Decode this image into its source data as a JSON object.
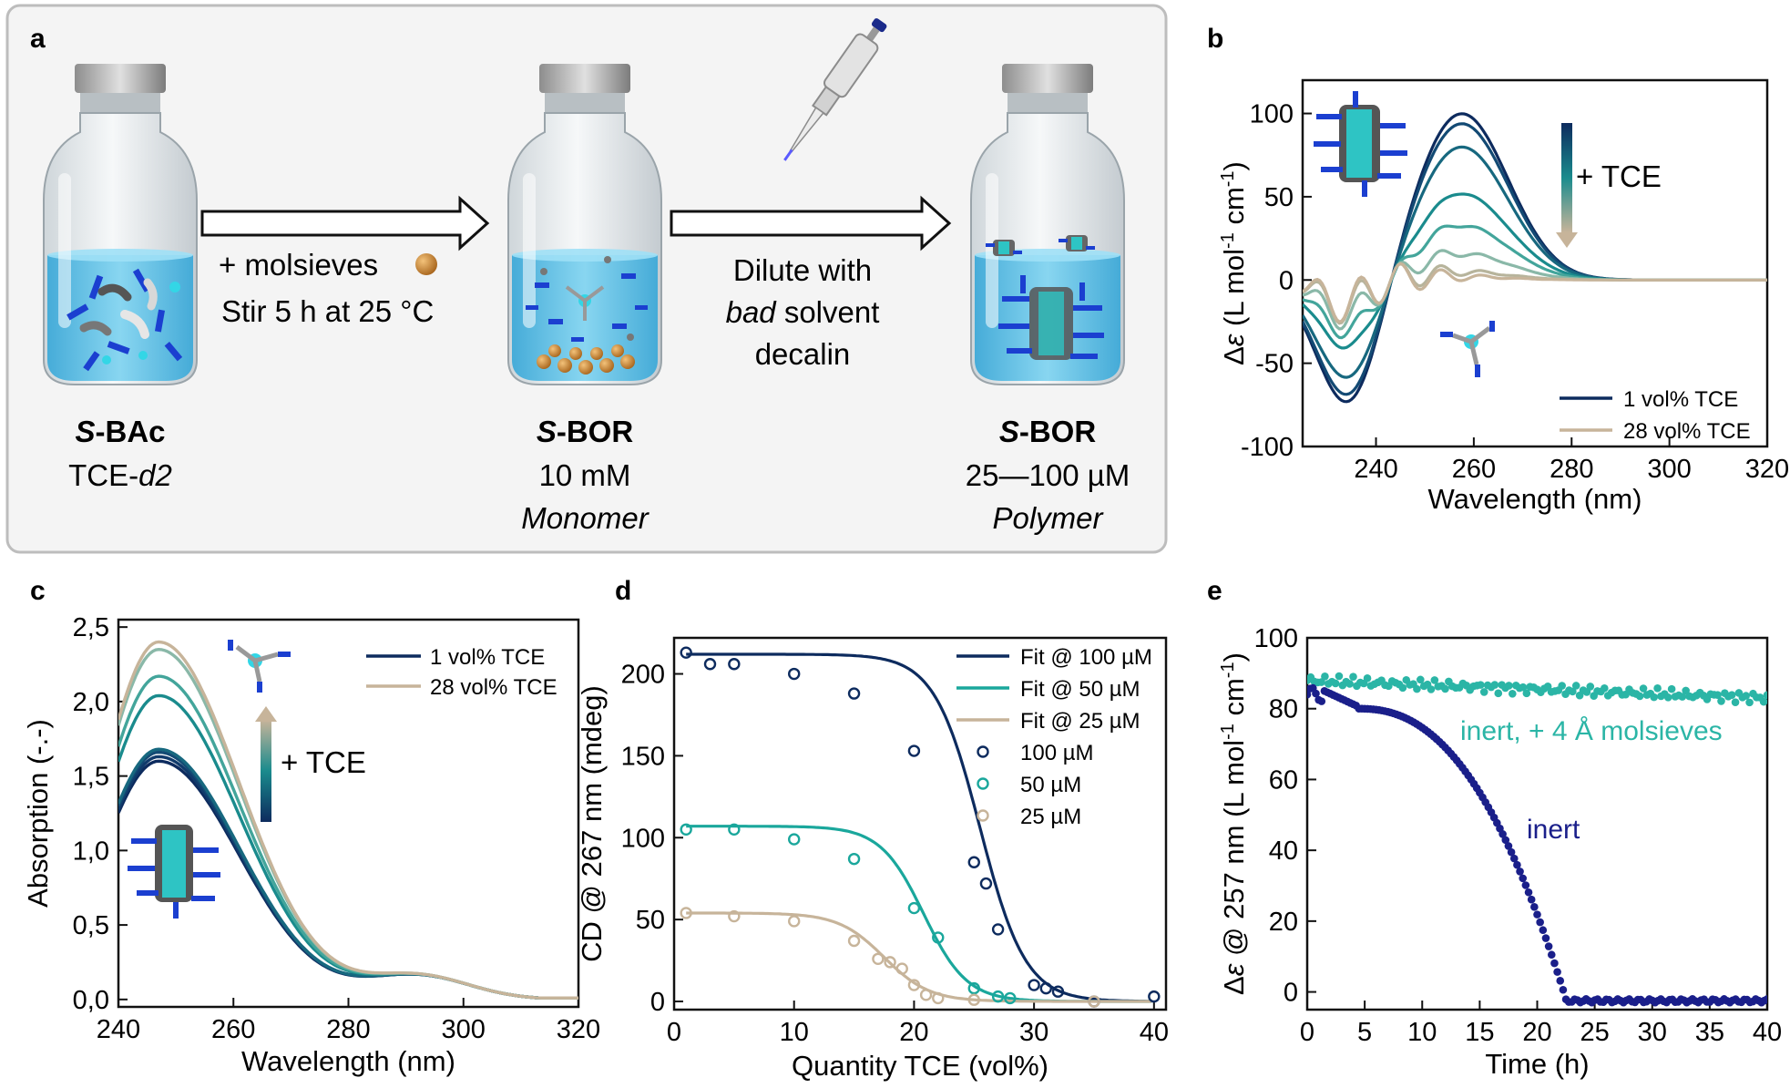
{
  "panels": {
    "a": {
      "letter": "a",
      "vial1": {
        "name": "S-BAc",
        "name_italic": "S",
        "name_rest": "-BAc",
        "line2": "TCE-d2",
        "line2_plain": "TCE-",
        "line2_italic": "d2"
      },
      "arrow1": {
        "line1": "+ molsieves",
        "line2": "Stir 5 h at 25 °C"
      },
      "vial2": {
        "name": "S-BOR",
        "name_italic": "S",
        "name_rest": "-BOR",
        "line2": "10 mM",
        "line3": "Monomer"
      },
      "arrow2": {
        "line1": "Dilute with",
        "line2_italic": "bad",
        "line2_rest": " solvent",
        "line3": "decalin"
      },
      "vial3": {
        "name": "S-BOR",
        "name_italic": "S",
        "name_rest": "-BOR",
        "line2": "25—100 µM",
        "line3": "Polymer"
      }
    },
    "b": {
      "letter": "b",
      "annotation": "+ TCE"
    },
    "c": {
      "letter": "c",
      "annotation": "+ TCE"
    },
    "d": {
      "letter": "d"
    },
    "e": {
      "letter": "e"
    }
  },
  "colors": {
    "navy": "#0d2b5e",
    "teal": "#1aa79c",
    "beige": "#c7b49a",
    "inert_dark": "#1a1f8a",
    "inert_teal": "#2bb5a6",
    "vial_liquid": "#5fc3e6",
    "panel_border": "#bdbdbd",
    "panel_bg": "#f4f4f4"
  },
  "chart_data": [
    {
      "panel": "b",
      "type": "line",
      "xlabel": "Wavelength (nm)",
      "ylabel": "Δε (L mol-1 cm-1)",
      "xlim": [
        225,
        320
      ],
      "ylim": [
        -100,
        120
      ],
      "xticks": [
        240,
        260,
        280,
        300,
        320
      ],
      "yticks": [
        -100,
        -50,
        0,
        50,
        100
      ],
      "legend": [
        {
          "label": "1 vol% TCE",
          "color": "#0d2b5e"
        },
        {
          "label": "28 vol% TCE",
          "color": "#c7b49a"
        }
      ],
      "legend_position": "bottom-right",
      "series_amplitudes": [
        100,
        94,
        80,
        52,
        33,
        16,
        5,
        2
      ],
      "series_colors": [
        "#0d2b5e",
        "#134a74",
        "#17687f",
        "#1a8b8d",
        "#43a59b",
        "#8ab8a8",
        "#b7b49c",
        "#c7b49a"
      ]
    },
    {
      "panel": "c",
      "type": "line",
      "xlabel": "Wavelength (nm)",
      "ylabel": "Absorption (-.-)",
      "xlim": [
        240,
        320
      ],
      "ylim": [
        -0.05,
        2.55
      ],
      "xticks": [
        240,
        260,
        280,
        300,
        320
      ],
      "yticks": [
        0.0,
        0.5,
        1.0,
        1.5,
        2.0,
        2.5
      ],
      "ytick_labels": [
        "0,0",
        "0,5",
        "1,0",
        "1,5",
        "2,0",
        "2,5"
      ],
      "legend": [
        {
          "label": "1 vol% TCE",
          "color": "#0d2b5e"
        },
        {
          "label": "28 vol% TCE",
          "color": "#c7b49a"
        }
      ],
      "legend_position": "top-right",
      "peak_values": [
        1.6,
        1.63,
        1.66,
        1.68,
        2.04,
        2.17,
        2.35,
        2.4
      ],
      "series_colors": [
        "#0d2b5e",
        "#103a6b",
        "#134a74",
        "#17687f",
        "#1a8b8d",
        "#43a59b",
        "#8ab8a8",
        "#c7b49a"
      ]
    },
    {
      "panel": "d",
      "type": "scatter",
      "xlabel": "Quantity TCE (vol%)",
      "ylabel": "CD @ 267 nm (mdeg)",
      "xlim": [
        0,
        41
      ],
      "ylim": [
        -5,
        222
      ],
      "xticks": [
        0,
        10,
        20,
        30,
        40
      ],
      "yticks": [
        0,
        50,
        100,
        150,
        200
      ],
      "legend": [
        {
          "label": "Fit @ 100 µM",
          "kind": "line",
          "color": "#0d2b5e"
        },
        {
          "label": "Fit @ 50 µM",
          "kind": "line",
          "color": "#1aa79c"
        },
        {
          "label": "Fit @ 25 µM",
          "kind": "line",
          "color": "#c7b49a"
        },
        {
          "label": "100 µM",
          "kind": "marker",
          "color": "#0d2b5e"
        },
        {
          "label": "50 µM",
          "kind": "marker",
          "color": "#1aa79c"
        },
        {
          "label": "25 µM",
          "kind": "marker",
          "color": "#c7b49a"
        }
      ],
      "legend_position": "top-right",
      "fits": [
        {
          "name": "Fit @ 100 µM",
          "color": "#0d2b5e",
          "amp": 212,
          "mid": 25.5,
          "width": 1.9
        },
        {
          "name": "Fit @ 50 µM",
          "color": "#1aa79c",
          "amp": 107,
          "mid": 20.8,
          "width": 1.8
        },
        {
          "name": "Fit @ 25 µM",
          "color": "#c7b49a",
          "amp": 54,
          "mid": 17.5,
          "width": 1.9
        }
      ],
      "series": [
        {
          "name": "100 µM",
          "color": "#0d2b5e",
          "x": [
            1,
            3,
            5,
            10,
            15,
            20,
            25,
            26,
            27,
            30,
            31,
            32,
            35,
            40
          ],
          "y": [
            213,
            206,
            206,
            200,
            188,
            153,
            85,
            72,
            44,
            10,
            8,
            6,
            0,
            3
          ]
        },
        {
          "name": "50 µM",
          "color": "#1aa79c",
          "x": [
            1,
            5,
            10,
            15,
            20,
            22,
            25,
            27,
            28
          ],
          "y": [
            105,
            105,
            99,
            87,
            57,
            39,
            8,
            3,
            2
          ]
        },
        {
          "name": "25 µM",
          "color": "#c7b49a",
          "x": [
            1,
            5,
            10,
            15,
            17,
            18,
            19,
            20,
            21,
            22,
            25,
            35
          ],
          "y": [
            54,
            52,
            49,
            37,
            26,
            24,
            20,
            10,
            4,
            2,
            1,
            0
          ]
        }
      ]
    },
    {
      "panel": "e",
      "type": "scatter",
      "xlabel": "Time (h)",
      "ylabel": "Δε @ 257 nm (L mol-1 cm-1)",
      "xlim": [
        0,
        40
      ],
      "ylim": [
        -5,
        100
      ],
      "xticks": [
        0,
        5,
        10,
        15,
        20,
        25,
        30,
        35,
        40
      ],
      "yticks": [
        0,
        20,
        40,
        60,
        80,
        100
      ],
      "series": [
        {
          "name": "inert, + 4 Å molsieves",
          "color": "#2bb5a6",
          "start": 88,
          "end": 83,
          "jitter": 1.6
        },
        {
          "name": "inert",
          "color": "#1a1f8a",
          "plateau": 85,
          "decay_start": 4.5,
          "collapse": 22.5,
          "final": -2.5
        }
      ],
      "labels": [
        {
          "text": "inert, + 4 Å molsieves",
          "color": "#2bb5a6"
        },
        {
          "text": "inert",
          "color": "#1a1f8a"
        }
      ]
    }
  ]
}
